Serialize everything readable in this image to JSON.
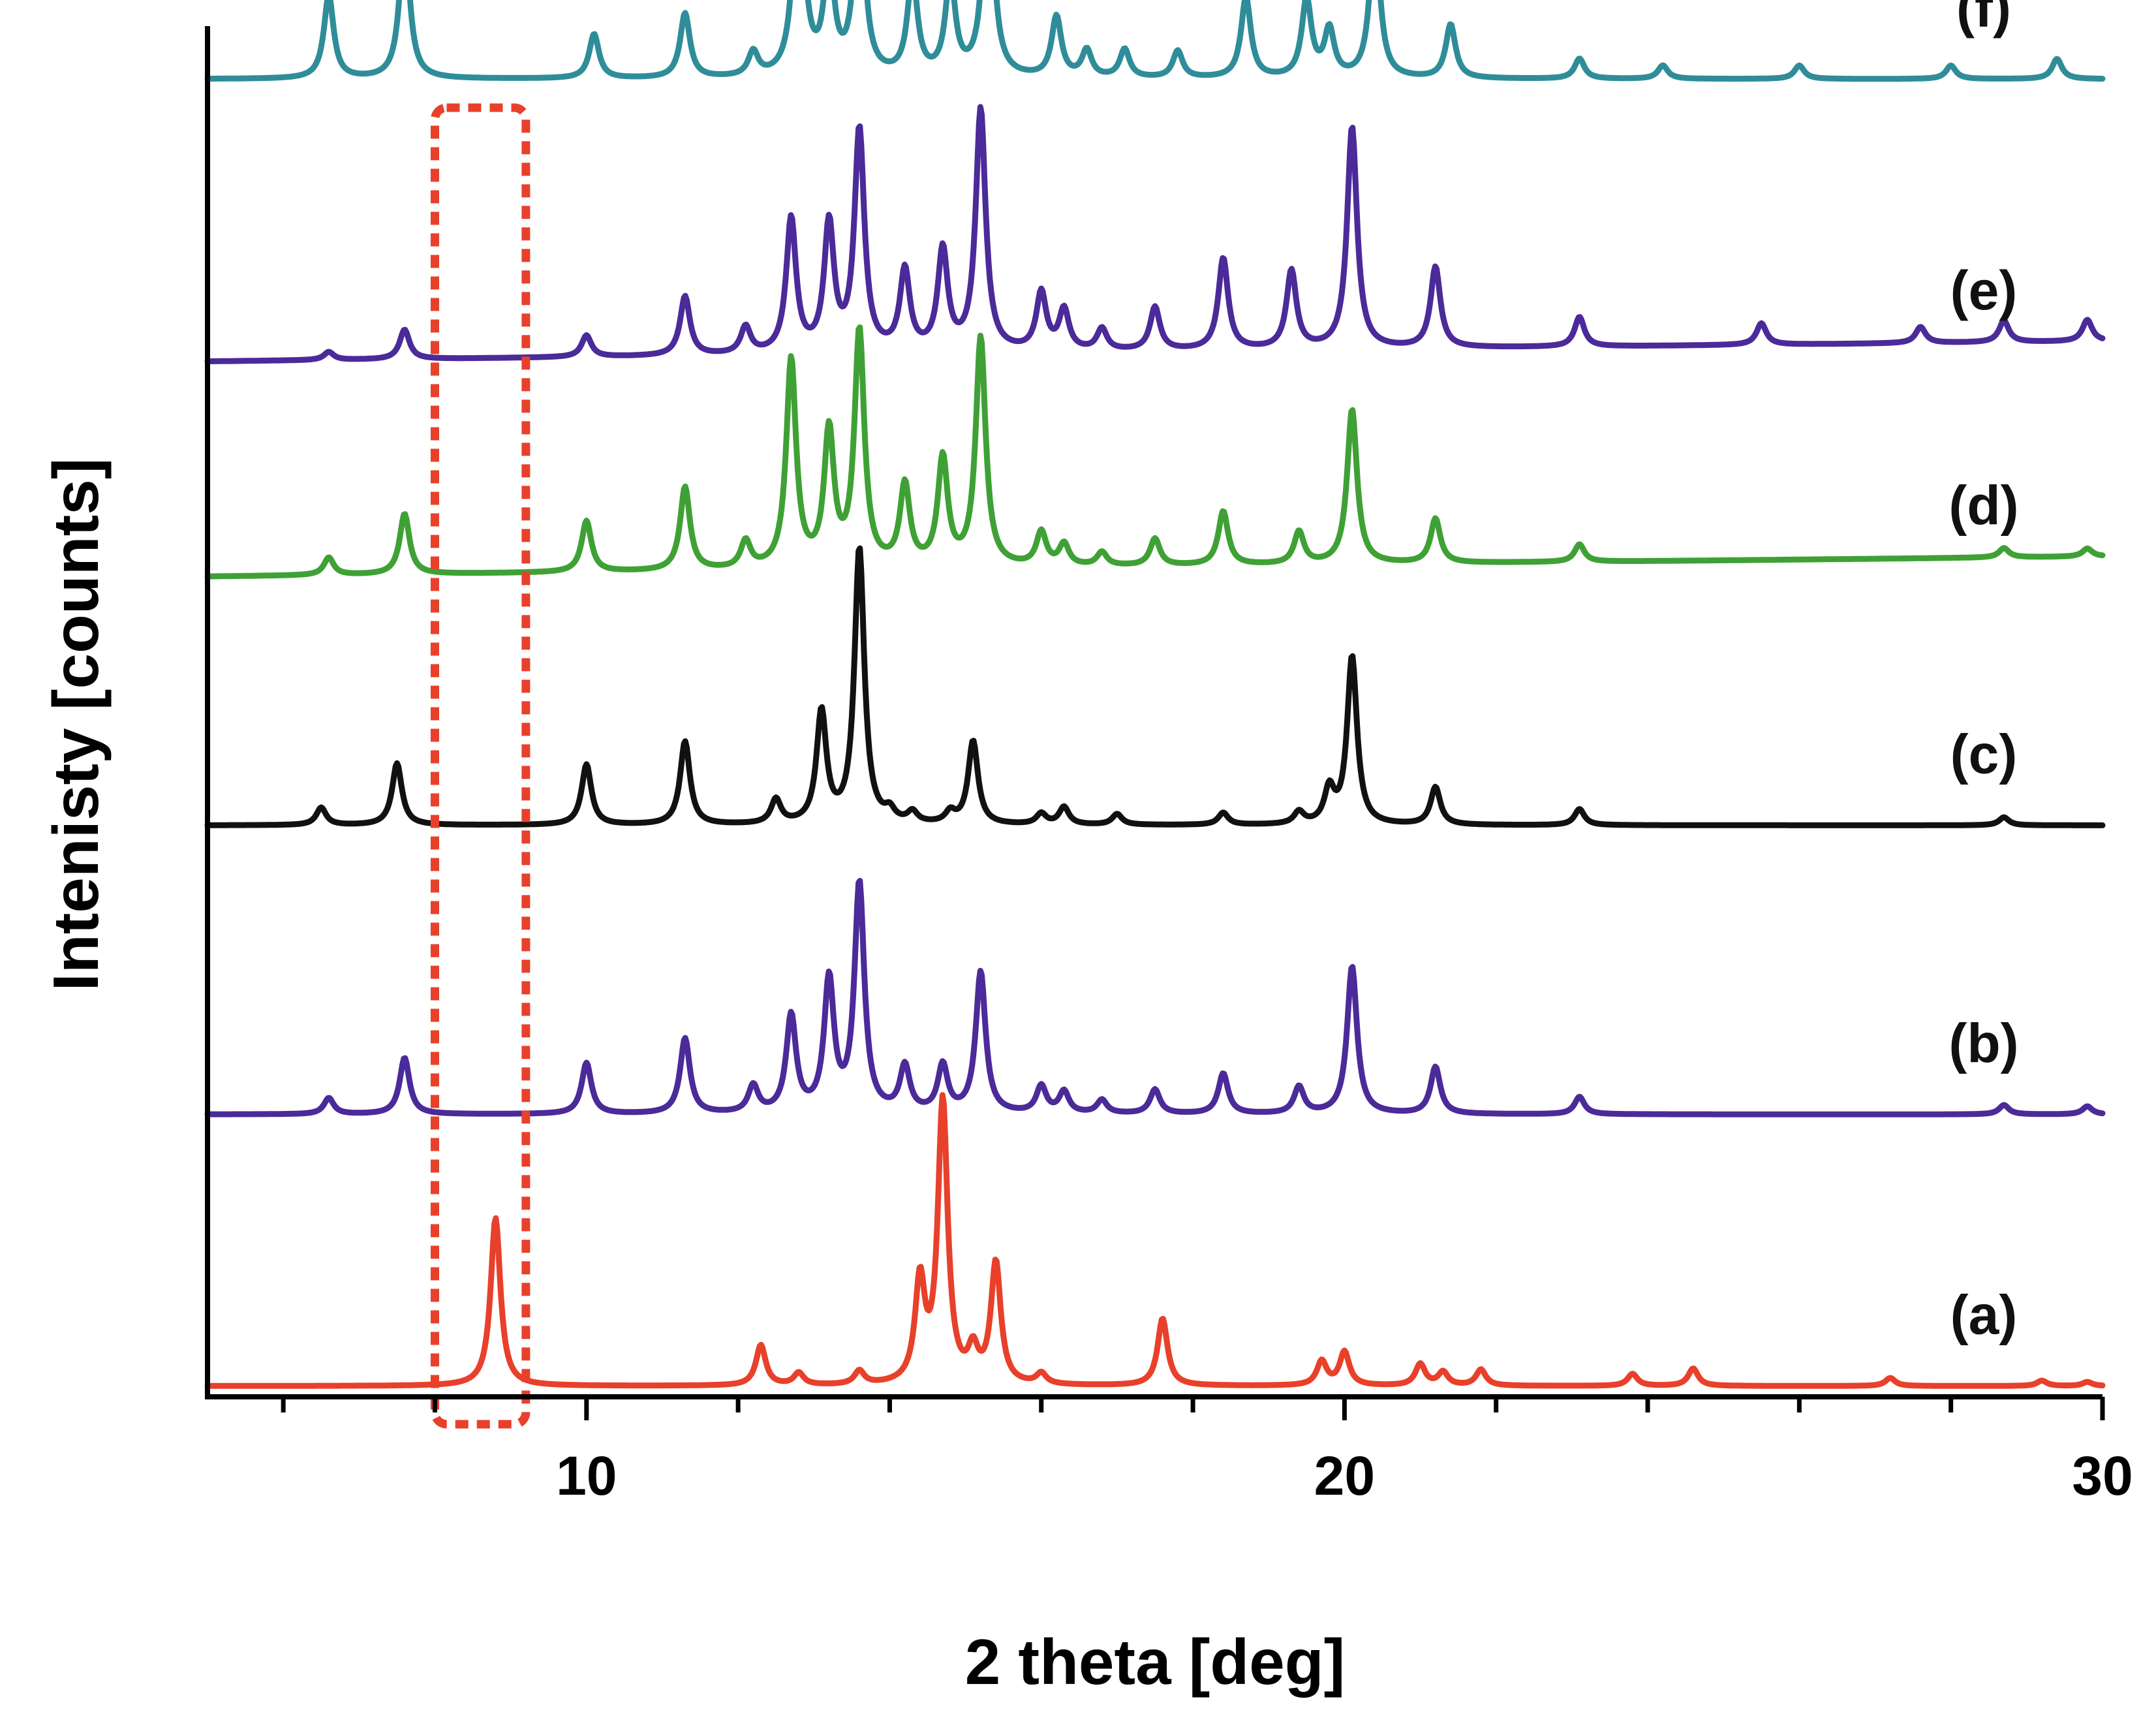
{
  "chart_data": {
    "type": "line",
    "title": "",
    "xlabel": "2 theta [deg]",
    "ylabel": "Intenisty [counts]",
    "xlim": [
      5,
      30
    ],
    "ylim": [
      0,
      100
    ],
    "x_ticks": [
      6,
      8,
      10,
      12,
      14,
      16,
      18,
      20,
      22,
      24,
      26,
      28,
      30
    ],
    "x_tick_labels": [
      {
        "value": 10,
        "label": "10"
      },
      {
        "value": 20,
        "label": "20"
      },
      {
        "value": 30,
        "label": "30"
      }
    ],
    "stacked": true,
    "highlight_region": {
      "x_range": [
        8.0,
        9.2
      ],
      "color": "#e8402a",
      "style": "dotted"
    },
    "series": [
      {
        "name": "(a)",
        "color": "#e8402a",
        "baseline": 0.8,
        "scale": 1.0,
        "peaks": [
          [
            8.8,
            12.5
          ],
          [
            12.3,
            3.0
          ],
          [
            12.8,
            0.9
          ],
          [
            13.6,
            1.0
          ],
          [
            14.4,
            7.5
          ],
          [
            14.7,
            21.0
          ],
          [
            15.1,
            2.3
          ],
          [
            15.4,
            9.0
          ],
          [
            16.0,
            0.8
          ],
          [
            17.6,
            5.0
          ],
          [
            19.7,
            1.8
          ],
          [
            20.0,
            2.5
          ],
          [
            21.0,
            1.6
          ],
          [
            21.3,
            1.0
          ],
          [
            21.8,
            1.2
          ],
          [
            23.8,
            0.9
          ],
          [
            24.6,
            1.3
          ],
          [
            27.2,
            0.6
          ],
          [
            29.2,
            0.4
          ],
          [
            29.8,
            0.3
          ]
        ]
      },
      {
        "name": "(b)",
        "color": "#4b2a99",
        "baseline": 21.0,
        "scale": 1.0,
        "peaks": [
          [
            6.6,
            1.2
          ],
          [
            7.6,
            4.2
          ],
          [
            10.0,
            3.8
          ],
          [
            11.3,
            5.6
          ],
          [
            12.2,
            2.0
          ],
          [
            12.7,
            7.2
          ],
          [
            13.2,
            9.8
          ],
          [
            13.6,
            17.0
          ],
          [
            14.2,
            3.4
          ],
          [
            14.7,
            3.5
          ],
          [
            15.2,
            10.5
          ],
          [
            16.0,
            2.0
          ],
          [
            16.3,
            1.6
          ],
          [
            16.8,
            1.0
          ],
          [
            17.5,
            1.8
          ],
          [
            18.4,
            3.0
          ],
          [
            19.4,
            2.0
          ],
          [
            20.1,
            11.0
          ],
          [
            21.2,
            3.5
          ],
          [
            23.1,
            1.3
          ],
          [
            28.7,
            0.7
          ],
          [
            29.8,
            0.6
          ]
        ]
      },
      {
        "name": "(c)",
        "color": "#111111",
        "baseline": 42.5,
        "scale": 1.0,
        "peaks": [
          [
            6.5,
            1.3
          ],
          [
            7.5,
            4.6
          ],
          [
            10.0,
            4.5
          ],
          [
            11.3,
            6.2
          ],
          [
            12.5,
            1.8
          ],
          [
            13.1,
            8.3
          ],
          [
            13.6,
            20.5
          ],
          [
            14.0,
            0.8
          ],
          [
            14.3,
            0.8
          ],
          [
            14.8,
            0.8
          ],
          [
            15.1,
            6.2
          ],
          [
            16.0,
            0.8
          ],
          [
            16.3,
            1.3
          ],
          [
            17.0,
            0.8
          ],
          [
            18.4,
            0.9
          ],
          [
            19.4,
            0.9
          ],
          [
            19.8,
            2.5
          ],
          [
            20.1,
            12.5
          ],
          [
            21.2,
            2.8
          ],
          [
            23.1,
            1.2
          ],
          [
            28.7,
            0.6
          ]
        ]
      },
      {
        "name": "(d)",
        "color": "#3fa135",
        "baseline": 61.0,
        "scale": 1.0,
        "peaks": [
          [
            6.6,
            1.3
          ],
          [
            7.6,
            4.5
          ],
          [
            10.0,
            3.8
          ],
          [
            11.3,
            6.2
          ],
          [
            12.1,
            2.0
          ],
          [
            12.7,
            15.5
          ],
          [
            13.2,
            10.0
          ],
          [
            13.6,
            17.5
          ],
          [
            14.2,
            6.0
          ],
          [
            14.7,
            8.0
          ],
          [
            15.2,
            17.0
          ],
          [
            16.0,
            2.5
          ],
          [
            16.3,
            1.6
          ],
          [
            16.8,
            1.0
          ],
          [
            17.5,
            2.0
          ],
          [
            18.4,
            4.0
          ],
          [
            19.4,
            2.4
          ],
          [
            20.1,
            11.5
          ],
          [
            21.2,
            3.3
          ],
          [
            23.1,
            1.3
          ],
          [
            28.7,
            0.7
          ],
          [
            29.8,
            0.6
          ]
        ]
      },
      {
        "name": "(e)",
        "color": "#4b2a99",
        "baseline": 77.0,
        "scale": 1.0,
        "peaks": [
          [
            6.6,
            0.6
          ],
          [
            7.6,
            2.2
          ],
          [
            10.0,
            1.6
          ],
          [
            11.3,
            4.4
          ],
          [
            12.1,
            2.0
          ],
          [
            12.7,
            10.0
          ],
          [
            13.2,
            9.5
          ],
          [
            13.6,
            16.5
          ],
          [
            14.2,
            6.0
          ],
          [
            14.7,
            7.5
          ],
          [
            15.2,
            18.0
          ],
          [
            16.0,
            4.3
          ],
          [
            16.3,
            3.0
          ],
          [
            16.8,
            1.6
          ],
          [
            17.5,
            3.2
          ],
          [
            18.4,
            6.8
          ],
          [
            19.3,
            5.8
          ],
          [
            20.1,
            16.5
          ],
          [
            21.2,
            6.0
          ],
          [
            23.1,
            2.2
          ],
          [
            25.5,
            1.6
          ],
          [
            27.6,
            1.2
          ],
          [
            28.7,
            1.6
          ],
          [
            29.8,
            1.6
          ]
        ]
      },
      {
        "name": "(f)",
        "color": "#2f8d99",
        "baseline": 98.0,
        "scale": 1.0,
        "peaks": [
          [
            6.6,
            6.2
          ],
          [
            7.6,
            11.0
          ],
          [
            10.1,
            3.3
          ],
          [
            11.3,
            4.8
          ],
          [
            12.2,
            1.8
          ],
          [
            12.8,
            17.5
          ],
          [
            13.2,
            8.5
          ],
          [
            13.6,
            15.0
          ],
          [
            14.3,
            7.5
          ],
          [
            14.8,
            7.3
          ],
          [
            15.3,
            17.0
          ],
          [
            16.2,
            4.5
          ],
          [
            16.6,
            2.0
          ],
          [
            17.1,
            2.1
          ],
          [
            17.8,
            2.0
          ],
          [
            18.7,
            6.0
          ],
          [
            19.5,
            5.8
          ],
          [
            19.8,
            3.5
          ],
          [
            20.4,
            11.5
          ],
          [
            21.4,
            4.0
          ],
          [
            23.1,
            1.5
          ],
          [
            24.2,
            1.0
          ],
          [
            26.0,
            1.0
          ],
          [
            28.0,
            1.0
          ],
          [
            29.4,
            1.5
          ]
        ]
      }
    ]
  }
}
